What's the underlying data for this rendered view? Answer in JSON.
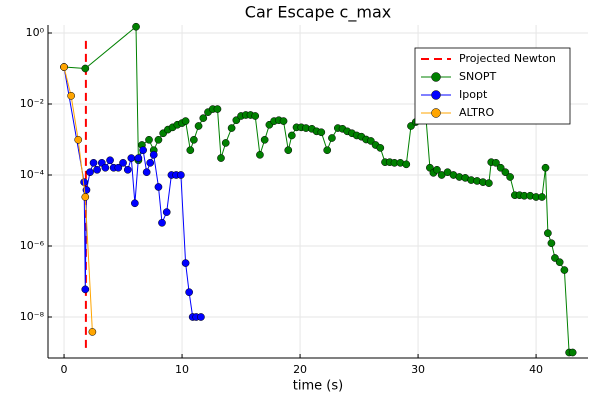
{
  "chart_data": {
    "type": "line",
    "title": "Car Escape c_max",
    "x_label": "time (s)",
    "y_scale": "log",
    "grid": true,
    "legend_position": "upper right",
    "xlim": [
      -1.36,
      44.4
    ],
    "xticks": [
      0,
      10,
      20,
      30,
      40
    ],
    "ylim": [
      1.68,
      7e-10
    ],
    "yticks": [
      {
        "value": 1,
        "label": "10⁰"
      },
      {
        "value": 0.01,
        "label": "10⁻²"
      },
      {
        "value": 0.0001,
        "label": "10⁻⁴"
      },
      {
        "value": 1e-06,
        "label": "10⁻⁶"
      },
      {
        "value": 1e-08,
        "label": "10⁻⁸"
      }
    ],
    "series": [
      {
        "name": "Projected Newton",
        "color": "#ff0000",
        "line_style": "dashed",
        "marker": "none",
        "x": [
          1.85,
          1.85
        ],
        "values": [
          0.6,
          1.2e-09
        ]
      },
      {
        "name": "SNOPT",
        "color": "#008000",
        "line_style": "solid",
        "marker": "circle",
        "x": [
          0,
          1.8,
          6.1,
          6.3,
          6.6,
          7.2,
          7.6,
          8.0,
          8.4,
          8.8,
          9.2,
          9.6,
          10.0,
          10.3,
          10.7,
          11.0,
          11.4,
          11.8,
          12.2,
          12.6,
          13.0,
          13.3,
          13.7,
          14.2,
          14.6,
          15.0,
          15.4,
          15.8,
          16.2,
          16.6,
          17.0,
          17.4,
          17.8,
          18.2,
          18.6,
          19.0,
          19.3,
          19.7,
          20.1,
          20.5,
          21.0,
          21.4,
          21.8,
          22.3,
          22.7,
          23.2,
          23.6,
          24.0,
          24.4,
          24.8,
          25.2,
          25.6,
          26.0,
          26.4,
          26.8,
          27.2,
          27.6,
          28.0,
          28.5,
          29.0,
          29.4,
          29.8,
          30.2,
          30.6,
          31.0,
          31.3,
          31.6,
          32.0,
          32.5,
          33.0,
          33.5,
          34.0,
          34.5,
          35.0,
          35.5,
          36.0,
          36.2,
          36.6,
          37.0,
          37.4,
          37.8,
          38.2,
          38.6,
          39.0,
          39.5,
          40.0,
          40.5,
          40.8,
          41.0,
          41.3,
          41.6,
          42.0,
          42.4,
          42.8,
          43.1
        ],
        "values": [
          0.11,
          0.1,
          1.5,
          0.00026,
          0.0007,
          0.00098,
          0.0005,
          0.00098,
          0.0015,
          0.0019,
          0.0022,
          0.0026,
          0.0029,
          0.0033,
          0.0005,
          0.00098,
          0.0024,
          0.004,
          0.0059,
          0.0072,
          0.0072,
          0.0003,
          0.0008,
          0.0021,
          0.0035,
          0.0046,
          0.0049,
          0.0049,
          0.0046,
          0.00037,
          0.00098,
          0.0026,
          0.0033,
          0.0035,
          0.0033,
          0.0005,
          0.0013,
          0.0022,
          0.0022,
          0.0021,
          0.002,
          0.0017,
          0.0016,
          0.0005,
          0.0011,
          0.0021,
          0.002,
          0.0017,
          0.0015,
          0.0013,
          0.0012,
          0.001,
          0.00091,
          0.0007,
          0.00058,
          0.00023,
          0.00023,
          0.00022,
          0.00022,
          0.0002,
          0.0024,
          0.0031,
          0.0052,
          0.0077,
          0.00016,
          0.000115,
          0.00014,
          0.0001,
          0.00012,
          0.0001,
          8.8e-05,
          8.3e-05,
          7.2e-05,
          6.8e-05,
          6.3e-05,
          5.9e-05,
          0.00023,
          0.00022,
          0.00016,
          0.00012,
          8.8e-05,
          2.7e-05,
          2.7e-05,
          2.6e-05,
          2.6e-05,
          2.4e-05,
          2.4e-05,
          0.00016,
          2.3e-06,
          1.2e-06,
          4.6e-07,
          3.5e-07,
          2.1e-07,
          1e-09,
          1e-09
        ]
      },
      {
        "name": "Ipopt",
        "color": "#0000ff",
        "line_style": "solid",
        "marker": "circle",
        "x": [
          0,
          1.7,
          1.8,
          1.9,
          2.2,
          2.5,
          2.8,
          3.2,
          3.5,
          3.9,
          4.2,
          4.6,
          5.0,
          5.4,
          5.7,
          6.0,
          6.3,
          6.7,
          7.0,
          7.3,
          7.6,
          8.0,
          8.3,
          8.7,
          9.1,
          9.5,
          9.9,
          10.3,
          10.6,
          10.9,
          11.2,
          11.6
        ],
        "values": [
          0.11,
          6.3e-05,
          6e-08,
          3.8e-05,
          0.00012,
          0.00022,
          0.00014,
          0.00022,
          0.00016,
          0.00026,
          0.00016,
          0.00016,
          0.00022,
          0.00014,
          0.0003,
          1.6e-05,
          0.0003,
          0.0005,
          0.00012,
          0.00022,
          0.00037,
          4.6e-05,
          4.5e-06,
          9e-06,
          0.0001,
          0.0001,
          0.0001,
          3.3e-07,
          5e-08,
          1e-08,
          1e-08,
          1e-08
        ]
      },
      {
        "name": "ALTRO",
        "color": "#ffa500",
        "line_style": "solid",
        "marker": "circle",
        "x": [
          0,
          0.6,
          1.2,
          1.8,
          2.4
        ],
        "values": [
          0.11,
          0.017,
          0.00098,
          2.4e-05,
          3.8e-09
        ]
      }
    ]
  }
}
